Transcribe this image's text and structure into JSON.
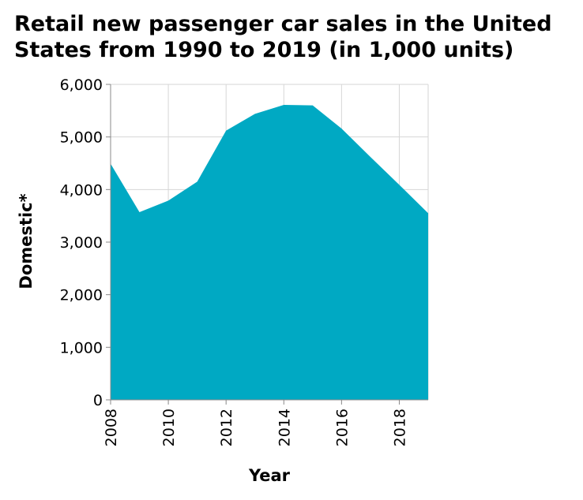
{
  "chart_data": {
    "type": "area",
    "title": "Retail new passenger car sales in the United States from 1990 to 2019 (in 1,000 units)",
    "xlabel": "Year",
    "ylabel": "Domestic*",
    "x_ticks": [
      "2008",
      "2010",
      "2012",
      "2014",
      "2016",
      "2018"
    ],
    "y_ticks": [
      "0",
      "1,000",
      "2,000",
      "3,000",
      "4,000",
      "5,000",
      "6,000"
    ],
    "xlim": [
      2008,
      2019
    ],
    "ylim": [
      0,
      6000
    ],
    "grid": true,
    "color": "#00a9c3",
    "series": [
      {
        "x": [
          2008,
          2009,
          2010,
          2011,
          2012,
          2013,
          2014,
          2015,
          2016,
          2017,
          2018,
          2019
        ],
        "values": [
          4490,
          3570,
          3790,
          4150,
          5120,
          5440,
          5610,
          5600,
          5160,
          4620,
          4090,
          3550
        ]
      }
    ]
  }
}
